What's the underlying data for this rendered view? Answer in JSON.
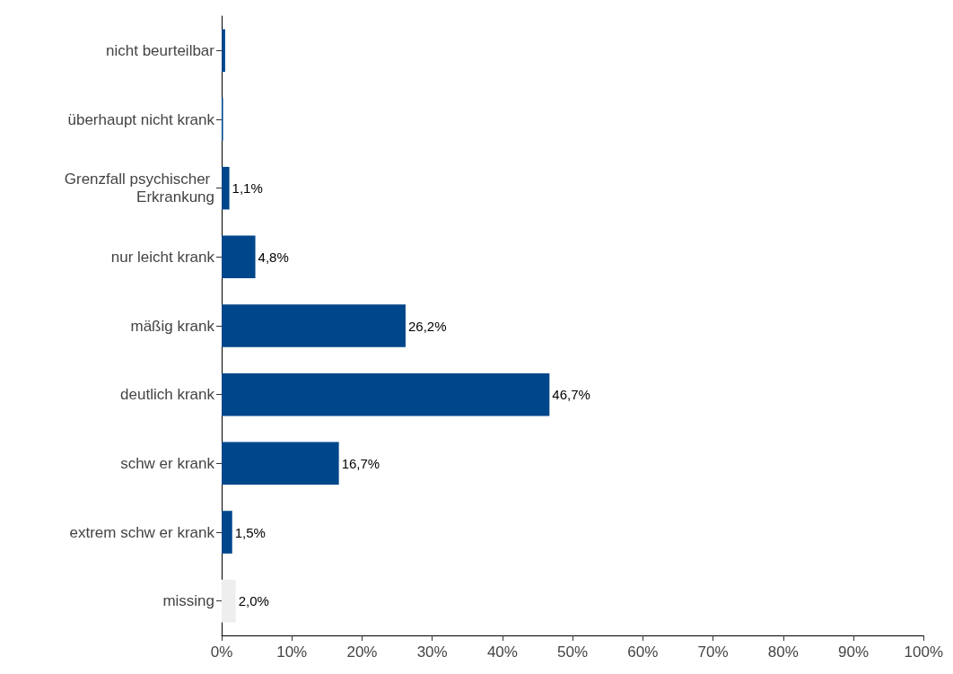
{
  "chart_data": {
    "type": "bar",
    "orientation": "horizontal",
    "categories": [
      "nicht beurteilbar",
      "überhaupt nicht krank",
      "Grenzfall psychischer Erkrankung",
      "nur leicht krank",
      "mäßig krank",
      "deutlich krank",
      "schw er krank",
      "extrem schw er krank",
      "missing"
    ],
    "values": [
      0.5,
      0.2,
      1.1,
      4.8,
      26.2,
      46.7,
      16.7,
      1.5,
      2.0
    ],
    "colors": [
      "#00468b",
      "#00468b",
      "#00468b",
      "#00468b",
      "#00468b",
      "#00468b",
      "#00468b",
      "#00468b",
      "#eeeeee"
    ],
    "value_labels": [
      null,
      null,
      "1,1%",
      "4,8%",
      "26,2%",
      "46,7%",
      "16,7%",
      "1,5%",
      "2,0%"
    ],
    "xlim": [
      0,
      100
    ],
    "xticks": [
      {
        "value": 0,
        "label": "0%"
      },
      {
        "value": 10,
        "label": "10%"
      },
      {
        "value": 20,
        "label": "20%"
      },
      {
        "value": 30,
        "label": "30%"
      },
      {
        "value": 40,
        "label": "40%"
      },
      {
        "value": 50,
        "label": "50%"
      },
      {
        "value": 60,
        "label": "60%"
      },
      {
        "value": 70,
        "label": "70%"
      },
      {
        "value": 80,
        "label": "80%"
      },
      {
        "value": 90,
        "label": "90%"
      },
      {
        "value": 100,
        "label": "100%"
      }
    ],
    "grid": false
  }
}
